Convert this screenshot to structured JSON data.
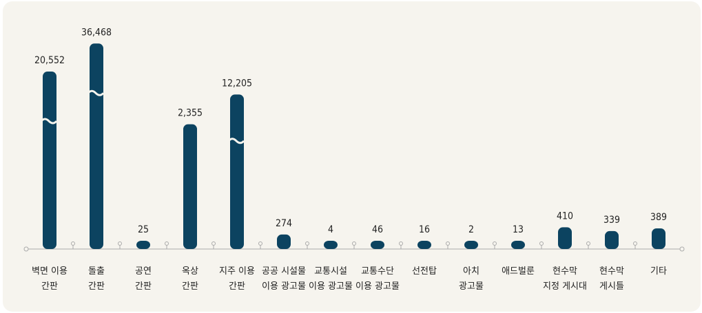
{
  "chart_data": {
    "type": "bar",
    "categories": [
      "벽면 이용\n간판",
      "돌출\n간판",
      "공연\n간판",
      "옥상\n간판",
      "지주 이용\n간판",
      "공공 시설물\n이용 광고물",
      "교통시설\n이용 광고물",
      "교통수단\n이용 광고물",
      "선전탑",
      "아치\n광고물",
      "애드벌룬",
      "현수막\n지정 게시대",
      "현수막\n게시틀",
      "기타"
    ],
    "values": [
      20552,
      36468,
      25,
      2355,
      12205,
      274,
      4,
      46,
      16,
      2,
      13,
      410,
      339,
      389
    ],
    "value_labels": [
      "20,552",
      "36,468",
      "25",
      "2,355",
      "12,205",
      "274",
      "4",
      "46",
      "16",
      "2",
      "13",
      "410",
      "339",
      "389"
    ],
    "color": "#0c4360"
  }
}
